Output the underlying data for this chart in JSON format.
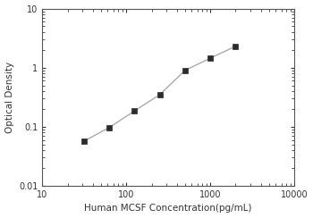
{
  "x_data": [
    31.25,
    62.5,
    125,
    250,
    500,
    1000,
    2000
  ],
  "y_data": [
    0.057,
    0.097,
    0.185,
    0.35,
    0.9,
    1.45,
    2.3
  ],
  "xlabel": "Human MCSF Concentration(pg/mL)",
  "ylabel": "Optical Density",
  "xlim": [
    10,
    10000
  ],
  "ylim": [
    0.01,
    10
  ],
  "xticks": [
    10,
    100,
    1000,
    10000
  ],
  "xtick_labels": [
    "10",
    "100",
    "1000",
    "10000"
  ],
  "yticks": [
    0.01,
    0.1,
    1,
    10
  ],
  "ytick_labels": [
    "0.01",
    "0.1",
    "1",
    "10"
  ],
  "line_color": "#aaaaaa",
  "marker_color": "#2b2b2b",
  "marker_size": 4,
  "line_width": 1.0,
  "background_color": "#ffffff",
  "spine_color": "#555555",
  "tick_color": "#333333",
  "label_fontsize": 7.5,
  "tick_fontsize": 7
}
